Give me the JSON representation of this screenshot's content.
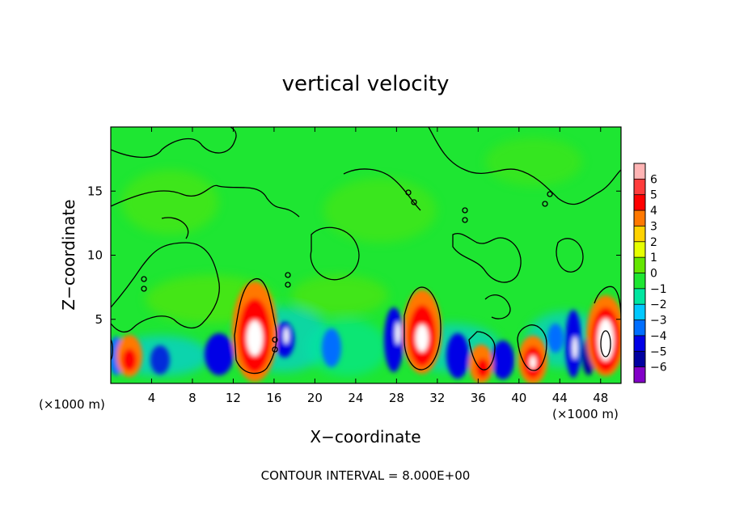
{
  "chart_data": {
    "type": "heatmap",
    "title": "vertical velocity",
    "xlabel": "X−coordinate",
    "ylabel": "Z−coordinate",
    "x_unit_left": "(×1000 m)",
    "x_unit_right": "(×1000 m)",
    "footer": "CONTOUR INTERVAL = 8.000E+00",
    "xlim": [
      0,
      50
    ],
    "ylim": [
      0,
      20
    ],
    "x_ticks": [
      4,
      8,
      12,
      16,
      20,
      24,
      28,
      32,
      36,
      40,
      44,
      48
    ],
    "x_tick_labels": [
      "4",
      "8",
      "12",
      "16",
      "20",
      "24",
      "28",
      "32",
      "36",
      "40",
      "44",
      "48"
    ],
    "y_ticks": [
      5,
      10,
      15
    ],
    "y_tick_labels": [
      "5",
      "10",
      "15"
    ],
    "colorbar": {
      "levels": [
        "6",
        "5",
        "4",
        "3",
        "2",
        "1",
        "0",
        "−1",
        "−2",
        "−3",
        "−4",
        "−5",
        "−6"
      ],
      "colors": [
        "#ffb4b4",
        "#ff3c3c",
        "#ff0000",
        "#ff7800",
        "#ffd200",
        "#e6ff00",
        "#64e600",
        "#1ee632",
        "#00e6a0",
        "#00c8ff",
        "#006eff",
        "#0000e6",
        "#0000a0",
        "#8200c8"
      ]
    },
    "features": [
      {
        "kind": "updraft",
        "x": 1.8,
        "z": 2.0,
        "value": 4
      },
      {
        "kind": "updraft",
        "x": 14.0,
        "z": 3.5,
        "value": 6
      },
      {
        "kind": "updraft",
        "x": 30.3,
        "z": 3.4,
        "value": 6
      },
      {
        "kind": "updraft",
        "x": 36.4,
        "z": 1.5,
        "value": 4
      },
      {
        "kind": "updraft",
        "x": 41.2,
        "z": 1.6,
        "value": 5
      },
      {
        "kind": "updraft",
        "x": 48.2,
        "z": 3.2,
        "value": 6
      },
      {
        "kind": "downdraft",
        "x": 8.5,
        "z": 2.0,
        "value": -4
      },
      {
        "kind": "downdraft",
        "x": 16.8,
        "z": 3.0,
        "value": -4
      },
      {
        "kind": "downdraft",
        "x": 27.6,
        "z": 3.0,
        "value": -5
      },
      {
        "kind": "downdraft",
        "x": 34.4,
        "z": 1.8,
        "value": -5
      },
      {
        "kind": "downdraft",
        "x": 38.8,
        "z": 1.6,
        "value": -5
      },
      {
        "kind": "downdraft",
        "x": 45.2,
        "z": 2.4,
        "value": -5
      }
    ]
  }
}
